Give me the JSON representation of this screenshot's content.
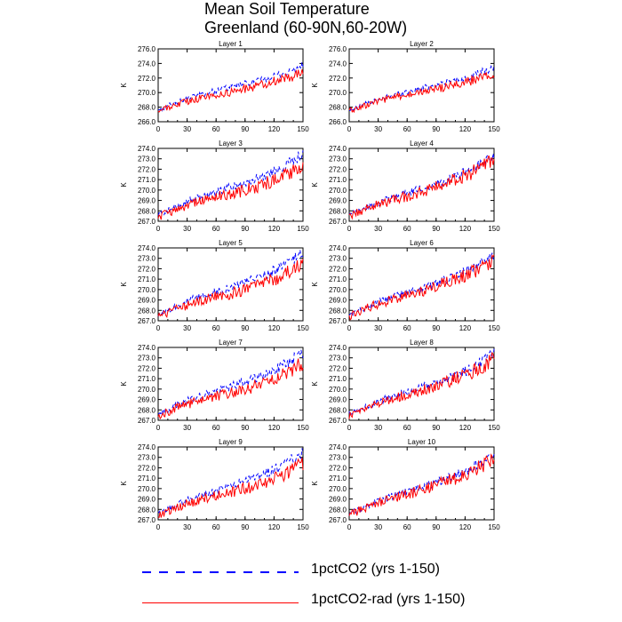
{
  "title": {
    "line1": "Mean Soil Temperature",
    "line2": "Greenland (60-90N,60-20W)"
  },
  "legend": {
    "items": [
      {
        "label": "1pctCO2 (yrs 1-150)",
        "color": "#0000ff",
        "style": "dashed"
      },
      {
        "label": "1pctCO2-rad (yrs 1-150)",
        "color": "#ff0000",
        "style": "solid"
      }
    ]
  },
  "chart_data": [
    {
      "type": "line",
      "title": "Layer 1",
      "xlabel": "",
      "ylabel": "K",
      "xlim": [
        0,
        150
      ],
      "ylim": [
        266.0,
        276.0
      ],
      "xticks": [
        0,
        30,
        60,
        90,
        120,
        150
      ],
      "yticks": [
        "266.0",
        "268.0",
        "270.0",
        "272.0",
        "274.0",
        "276.0"
      ],
      "x": [
        0,
        10,
        20,
        30,
        40,
        50,
        60,
        70,
        80,
        90,
        100,
        110,
        120,
        130,
        140,
        150
      ],
      "series": [
        {
          "name": "1pctCO2 (yrs 1-150)",
          "values": [
            267.6,
            268.2,
            268.7,
            269.1,
            269.6,
            269.9,
            270.3,
            270.6,
            270.9,
            271.2,
            271.5,
            271.8,
            272.2,
            272.6,
            273.1,
            273.7
          ]
        },
        {
          "name": "1pctCO2-rad (yrs 1-150)",
          "values": [
            267.5,
            267.9,
            268.4,
            268.8,
            269.1,
            269.4,
            269.7,
            269.9,
            270.2,
            270.5,
            270.8,
            271.2,
            271.5,
            271.9,
            272.3,
            272.8
          ]
        }
      ]
    },
    {
      "type": "line",
      "title": "Layer 2",
      "xlabel": "",
      "ylabel": "K",
      "xlim": [
        0,
        150
      ],
      "ylim": [
        266.0,
        276.0
      ],
      "xticks": [
        0,
        30,
        60,
        90,
        120,
        150
      ],
      "yticks": [
        "266.0",
        "268.0",
        "270.0",
        "272.0",
        "274.0",
        "276.0"
      ],
      "x": [
        0,
        10,
        20,
        30,
        40,
        50,
        60,
        70,
        80,
        90,
        100,
        110,
        120,
        130,
        140,
        150
      ],
      "series": [
        {
          "name": "1pctCO2 (yrs 1-150)",
          "values": [
            267.6,
            268.1,
            268.6,
            269.0,
            269.4,
            269.8,
            270.1,
            270.5,
            270.8,
            271.1,
            271.4,
            271.7,
            272.0,
            272.4,
            272.9,
            273.4
          ]
        },
        {
          "name": "1pctCO2-rad (yrs 1-150)",
          "values": [
            267.5,
            267.9,
            268.4,
            268.8,
            269.1,
            269.4,
            269.7,
            269.9,
            270.2,
            270.5,
            270.8,
            271.1,
            271.4,
            271.8,
            272.2,
            272.6
          ]
        }
      ]
    },
    {
      "type": "line",
      "title": "Layer 3",
      "xlabel": "",
      "ylabel": "K",
      "xlim": [
        0,
        150
      ],
      "ylim": [
        267.0,
        274.0
      ],
      "xticks": [
        0,
        30,
        60,
        90,
        120,
        150
      ],
      "yticks": [
        "267.0",
        "268.0",
        "269.0",
        "270.0",
        "271.0",
        "272.0",
        "273.0",
        "274.0"
      ],
      "x": [
        0,
        10,
        20,
        30,
        40,
        50,
        60,
        70,
        80,
        90,
        100,
        110,
        120,
        130,
        140,
        150
      ],
      "series": [
        {
          "name": "1pctCO2 (yrs 1-150)",
          "values": [
            267.6,
            268.0,
            268.5,
            268.9,
            269.2,
            269.5,
            269.8,
            270.1,
            270.4,
            270.7,
            271.0,
            271.4,
            271.8,
            272.3,
            272.9,
            273.5
          ]
        },
        {
          "name": "1pctCO2-rad (yrs 1-150)",
          "values": [
            267.4,
            267.8,
            268.2,
            268.5,
            268.8,
            269.1,
            269.3,
            269.5,
            269.7,
            270.0,
            270.3,
            270.6,
            271.0,
            271.4,
            271.9,
            272.5
          ]
        }
      ]
    },
    {
      "type": "line",
      "title": "Layer 4",
      "xlabel": "",
      "ylabel": "K",
      "xlim": [
        0,
        150
      ],
      "ylim": [
        267.0,
        274.0
      ],
      "xticks": [
        0,
        30,
        60,
        90,
        120,
        150
      ],
      "yticks": [
        "267.0",
        "268.0",
        "269.0",
        "270.0",
        "271.0",
        "272.0",
        "273.0",
        "274.0"
      ],
      "x": [
        0,
        10,
        20,
        30,
        40,
        50,
        60,
        70,
        80,
        90,
        100,
        110,
        120,
        130,
        140,
        150
      ],
      "series": [
        {
          "name": "1pctCO2 (yrs 1-150)",
          "values": [
            267.6,
            268.0,
            268.4,
            268.8,
            269.1,
            269.4,
            269.7,
            270.0,
            270.3,
            270.6,
            270.9,
            271.3,
            271.7,
            272.2,
            272.8,
            273.4
          ]
        },
        {
          "name": "1pctCO2-rad (yrs 1-150)",
          "values": [
            267.4,
            267.9,
            268.3,
            268.6,
            268.9,
            269.2,
            269.4,
            269.7,
            270.0,
            270.3,
            270.7,
            271.0,
            271.4,
            271.8,
            272.3,
            272.9
          ]
        }
      ]
    },
    {
      "type": "line",
      "title": "Layer 5",
      "xlabel": "",
      "ylabel": "K",
      "xlim": [
        0,
        150
      ],
      "ylim": [
        267.0,
        274.0
      ],
      "xticks": [
        0,
        30,
        60,
        90,
        120,
        150
      ],
      "yticks": [
        "267.0",
        "268.0",
        "269.0",
        "270.0",
        "271.0",
        "272.0",
        "273.0",
        "274.0"
      ],
      "x": [
        0,
        10,
        20,
        30,
        40,
        50,
        60,
        70,
        80,
        90,
        100,
        110,
        120,
        130,
        140,
        150
      ],
      "series": [
        {
          "name": "1pctCO2 (yrs 1-150)",
          "values": [
            267.6,
            268.0,
            268.5,
            268.9,
            269.2,
            269.5,
            269.8,
            270.1,
            270.4,
            270.7,
            271.0,
            271.4,
            271.8,
            272.3,
            272.9,
            273.5
          ]
        },
        {
          "name": "1pctCO2-rad (yrs 1-150)",
          "values": [
            267.4,
            267.8,
            268.2,
            268.5,
            268.8,
            269.1,
            269.3,
            269.5,
            269.7,
            270.0,
            270.3,
            270.6,
            271.0,
            271.4,
            271.9,
            272.5
          ]
        }
      ]
    },
    {
      "type": "line",
      "title": "Layer 6",
      "xlabel": "",
      "ylabel": "K",
      "xlim": [
        0,
        150
      ],
      "ylim": [
        267.0,
        274.0
      ],
      "xticks": [
        0,
        30,
        60,
        90,
        120,
        150
      ],
      "yticks": [
        "267.0",
        "268.0",
        "269.0",
        "270.0",
        "271.0",
        "272.0",
        "273.0",
        "274.0"
      ],
      "x": [
        0,
        10,
        20,
        30,
        40,
        50,
        60,
        70,
        80,
        90,
        100,
        110,
        120,
        130,
        140,
        150
      ],
      "series": [
        {
          "name": "1pctCO2 (yrs 1-150)",
          "values": [
            267.6,
            268.0,
            268.4,
            268.8,
            269.1,
            269.4,
            269.7,
            270.0,
            270.3,
            270.6,
            270.9,
            271.3,
            271.7,
            272.2,
            272.8,
            273.4
          ]
        },
        {
          "name": "1pctCO2-rad (yrs 1-150)",
          "values": [
            267.4,
            267.9,
            268.3,
            268.6,
            268.9,
            269.2,
            269.4,
            269.7,
            270.0,
            270.3,
            270.7,
            271.0,
            271.4,
            271.8,
            272.3,
            272.9
          ]
        }
      ]
    },
    {
      "type": "line",
      "title": "Layer 7",
      "xlabel": "",
      "ylabel": "K",
      "xlim": [
        0,
        150
      ],
      "ylim": [
        267.0,
        274.0
      ],
      "xticks": [
        0,
        30,
        60,
        90,
        120,
        150
      ],
      "yticks": [
        "267.0",
        "268.0",
        "269.0",
        "270.0",
        "271.0",
        "272.0",
        "273.0",
        "274.0"
      ],
      "x": [
        0,
        10,
        20,
        30,
        40,
        50,
        60,
        70,
        80,
        90,
        100,
        110,
        120,
        130,
        140,
        150
      ],
      "series": [
        {
          "name": "1pctCO2 (yrs 1-150)",
          "values": [
            267.6,
            268.0,
            268.5,
            268.9,
            269.2,
            269.5,
            269.8,
            270.1,
            270.4,
            270.7,
            271.0,
            271.4,
            271.8,
            272.3,
            272.9,
            273.5
          ]
        },
        {
          "name": "1pctCO2-rad (yrs 1-150)",
          "values": [
            267.4,
            267.8,
            268.2,
            268.5,
            268.8,
            269.1,
            269.3,
            269.5,
            269.7,
            270.0,
            270.3,
            270.6,
            271.0,
            271.4,
            271.9,
            272.5
          ]
        }
      ]
    },
    {
      "type": "line",
      "title": "Layer 8",
      "xlabel": "",
      "ylabel": "K",
      "xlim": [
        0,
        150
      ],
      "ylim": [
        267.0,
        274.0
      ],
      "xticks": [
        0,
        30,
        60,
        90,
        120,
        150
      ],
      "yticks": [
        "267.0",
        "268.0",
        "269.0",
        "270.0",
        "271.0",
        "272.0",
        "273.0",
        "274.0"
      ],
      "x": [
        0,
        10,
        20,
        30,
        40,
        50,
        60,
        70,
        80,
        90,
        100,
        110,
        120,
        130,
        140,
        150
      ],
      "series": [
        {
          "name": "1pctCO2 (yrs 1-150)",
          "values": [
            267.6,
            268.0,
            268.4,
            268.8,
            269.1,
            269.4,
            269.7,
            270.0,
            270.3,
            270.6,
            270.9,
            271.3,
            271.7,
            272.2,
            272.8,
            273.4
          ]
        },
        {
          "name": "1pctCO2-rad (yrs 1-150)",
          "values": [
            267.4,
            267.9,
            268.3,
            268.6,
            268.9,
            269.2,
            269.4,
            269.7,
            270.0,
            270.3,
            270.7,
            271.0,
            271.4,
            271.8,
            272.3,
            272.9
          ]
        }
      ]
    },
    {
      "type": "line",
      "title": "Layer 9",
      "xlabel": "",
      "ylabel": "K",
      "xlim": [
        0,
        150
      ],
      "ylim": [
        267.0,
        274.0
      ],
      "xticks": [
        0,
        30,
        60,
        90,
        120,
        150
      ],
      "yticks": [
        "267.0",
        "268.0",
        "269.0",
        "270.0",
        "271.0",
        "272.0",
        "273.0",
        "274.0"
      ],
      "x": [
        0,
        10,
        20,
        30,
        40,
        50,
        60,
        70,
        80,
        90,
        100,
        110,
        120,
        130,
        140,
        150
      ],
      "series": [
        {
          "name": "1pctCO2 (yrs 1-150)",
          "values": [
            267.6,
            268.0,
            268.5,
            268.9,
            269.2,
            269.5,
            269.8,
            270.1,
            270.4,
            270.7,
            271.0,
            271.4,
            271.8,
            272.3,
            272.9,
            273.5
          ]
        },
        {
          "name": "1pctCO2-rad (yrs 1-150)",
          "values": [
            267.4,
            267.8,
            268.2,
            268.5,
            268.8,
            269.1,
            269.3,
            269.5,
            269.7,
            270.0,
            270.3,
            270.6,
            271.0,
            271.4,
            271.9,
            272.5
          ]
        }
      ]
    },
    {
      "type": "line",
      "title": "Layer 10",
      "xlabel": "",
      "ylabel": "K",
      "xlim": [
        0,
        150
      ],
      "ylim": [
        267.0,
        274.0
      ],
      "xticks": [
        0,
        30,
        60,
        90,
        120,
        150
      ],
      "yticks": [
        "267.0",
        "268.0",
        "269.0",
        "270.0",
        "271.0",
        "272.0",
        "273.0",
        "274.0"
      ],
      "x": [
        0,
        10,
        20,
        30,
        40,
        50,
        60,
        70,
        80,
        90,
        100,
        110,
        120,
        130,
        140,
        150
      ],
      "series": [
        {
          "name": "1pctCO2 (yrs 1-150)",
          "values": [
            267.6,
            268.0,
            268.4,
            268.8,
            269.1,
            269.4,
            269.7,
            270.0,
            270.3,
            270.6,
            270.9,
            271.3,
            271.7,
            272.2,
            272.8,
            273.4
          ]
        },
        {
          "name": "1pctCO2-rad (yrs 1-150)",
          "values": [
            267.4,
            267.9,
            268.3,
            268.6,
            268.9,
            269.2,
            269.4,
            269.7,
            270.0,
            270.3,
            270.7,
            271.0,
            271.4,
            271.8,
            272.3,
            272.9
          ]
        }
      ]
    }
  ]
}
